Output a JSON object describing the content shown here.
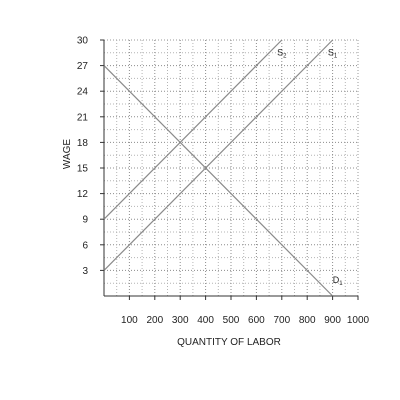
{
  "chart_data": {
    "type": "line",
    "title": "",
    "xlabel": "QUANTITY OF LABOR",
    "ylabel": "WAGE",
    "xlim": [
      0,
      1000
    ],
    "ylim": [
      0,
      30
    ],
    "x_ticks": [
      100,
      200,
      300,
      400,
      500,
      600,
      700,
      800,
      900,
      1000
    ],
    "x_tick_labels": [
      "100",
      "200",
      "300",
      "400",
      "500",
      "600",
      "700",
      "800",
      "900",
      "1000"
    ],
    "y_ticks": [
      3,
      6,
      9,
      12,
      15,
      18,
      21,
      24,
      27,
      30
    ],
    "y_tick_labels": [
      "3",
      "6",
      "9",
      "12",
      "15",
      "18",
      "21",
      "24",
      "27",
      "30"
    ],
    "grid": true,
    "grid_style": "dotted",
    "line_color": "#8a8a8a",
    "series": [
      {
        "name": "S2",
        "label_main": "S",
        "label_sub": "2",
        "x": [
          0,
          700
        ],
        "y": [
          9,
          30
        ],
        "label_at": [
          700,
          28.2
        ]
      },
      {
        "name": "S1",
        "label_main": "S",
        "label_sub": "1",
        "x": [
          0,
          900
        ],
        "y": [
          3,
          30
        ],
        "label_at": [
          900,
          28.2
        ]
      },
      {
        "name": "D1",
        "label_main": "D",
        "label_sub": "1",
        "x": [
          0,
          900
        ],
        "y": [
          27,
          0
        ],
        "label_at": [
          920,
          1.5
        ]
      }
    ]
  }
}
